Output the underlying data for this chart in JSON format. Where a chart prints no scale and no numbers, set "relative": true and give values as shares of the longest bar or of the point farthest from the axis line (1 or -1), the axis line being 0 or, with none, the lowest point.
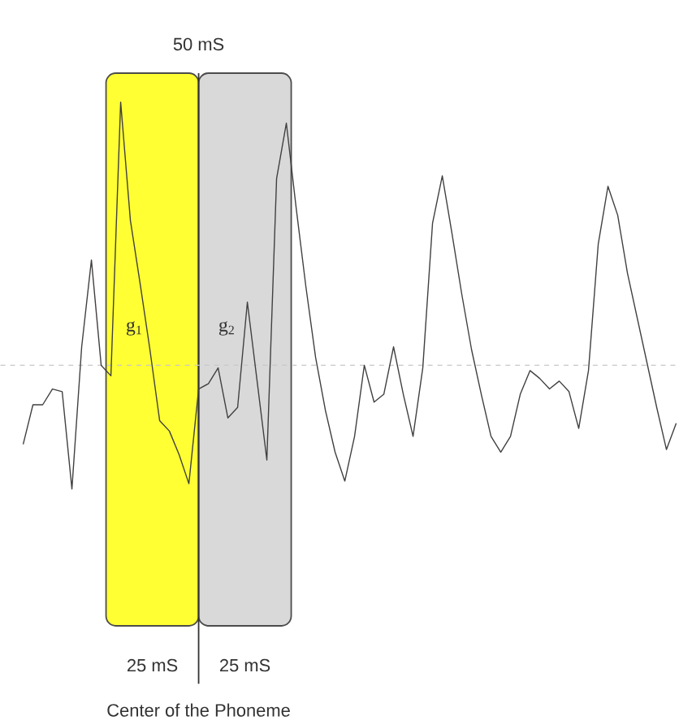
{
  "chart_data": {
    "type": "line",
    "relative": true,
    "marker": "none",
    "line_style": "solid",
    "categories": [
      null,
      null,
      null,
      null,
      null,
      null,
      null,
      null,
      null,
      null,
      null,
      null,
      null,
      null,
      null,
      null,
      null,
      null,
      null,
      null,
      null,
      null,
      null,
      null,
      null,
      null,
      null,
      null,
      null,
      null,
      null,
      null,
      null,
      null,
      null,
      null,
      null,
      null,
      null,
      null,
      null,
      null,
      null,
      null,
      null,
      null,
      null,
      null,
      null,
      null,
      null,
      null,
      null,
      null,
      null,
      null,
      null,
      null,
      null,
      null,
      null,
      null,
      null,
      null,
      null,
      null,
      null,
      null
    ],
    "series": [
      {
        "color": "#404040",
        "values": [
          -0.3,
          -0.15,
          -0.15,
          -0.09,
          -0.1,
          -0.47,
          0.07,
          0.4,
          0.0,
          -0.04,
          1.0,
          0.55,
          0.31,
          0.06,
          -0.21,
          -0.25,
          -0.34,
          -0.45,
          -0.09,
          -0.07,
          -0.01,
          -0.2,
          -0.16,
          0.24,
          -0.06,
          -0.36,
          0.71,
          0.92,
          0.6,
          0.3,
          0.03,
          -0.17,
          -0.33,
          -0.44,
          -0.27,
          0.0,
          -0.14,
          -0.11,
          0.07,
          -0.11,
          -0.27,
          -0.01,
          0.54,
          0.72,
          0.5,
          0.27,
          0.06,
          -0.11,
          -0.27,
          -0.33,
          -0.27,
          -0.11,
          -0.02,
          -0.05,
          -0.09,
          -0.06,
          -0.1,
          -0.24,
          -0.02,
          0.46,
          0.68,
          0.57,
          0.35,
          0.18,
          0.01,
          -0.16,
          -0.32,
          -0.22
        ]
      }
    ],
    "ref_lines": [
      {
        "axis": "y",
        "value": 0,
        "color": "#c8c8c8",
        "line_style": "dashed"
      }
    ],
    "annotations": [
      "50 mS",
      "25 mS",
      "25 mS",
      "g$_{1}$",
      "g$_{2}$",
      "Center of the Phoneme"
    ]
  }
}
